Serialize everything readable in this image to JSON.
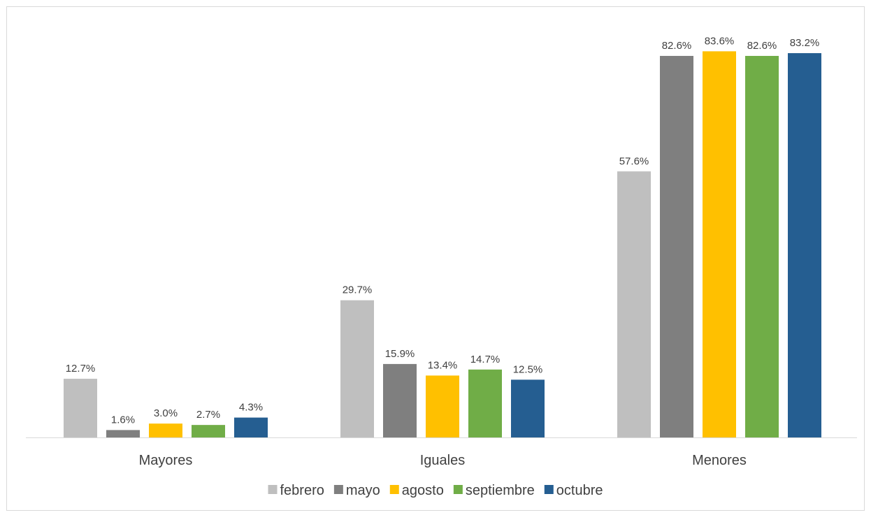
{
  "chart_data": {
    "type": "bar",
    "title": "",
    "xlabel": "",
    "ylabel": "",
    "ylim": [
      0,
      90
    ],
    "grid": false,
    "legend_position": "bottom",
    "value_format": "percent_one_decimal",
    "categories": [
      "Mayores",
      "Iguales",
      "Menores"
    ],
    "series": [
      {
        "name": "febrero",
        "color": "#bfbfbf",
        "values": [
          12.7,
          29.7,
          57.6
        ],
        "labels": [
          "12.7%",
          "29.7%",
          "57.6%"
        ]
      },
      {
        "name": "mayo",
        "color": "#7f7f7f",
        "values": [
          1.6,
          15.9,
          82.6
        ],
        "labels": [
          "1.6%",
          "15.9%",
          "82.6%"
        ]
      },
      {
        "name": "agosto",
        "color": "#ffc000",
        "values": [
          3.0,
          13.4,
          83.6
        ],
        "labels": [
          "3.0%",
          "13.4%",
          "83.6%"
        ]
      },
      {
        "name": "septiembre",
        "color": "#70ad47",
        "values": [
          2.7,
          14.7,
          82.6
        ],
        "labels": [
          "2.7%",
          "14.7%",
          "82.6%"
        ]
      },
      {
        "name": "octubre",
        "color": "#255e91",
        "values": [
          4.3,
          12.5,
          83.2
        ],
        "labels": [
          "4.3%",
          "12.5%",
          "83.2%"
        ]
      }
    ]
  }
}
